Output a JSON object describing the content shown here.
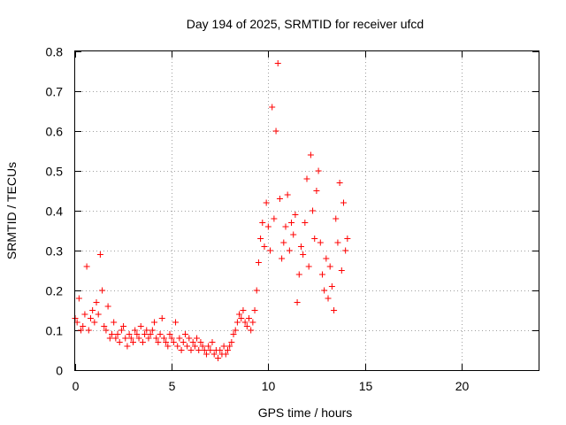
{
  "chart_data": {
    "type": "scatter",
    "title": "Day 194 of 2025, SRMTID for receiver ufcd",
    "xlabel": "GPS time / hours",
    "ylabel": "SRMTID / TECUs",
    "xlim": [
      0,
      24
    ],
    "ylim": [
      0,
      0.8
    ],
    "x_ticks": [
      0,
      5,
      10,
      15,
      20
    ],
    "y_ticks": [
      0,
      0.1,
      0.2,
      0.3,
      0.4,
      0.5,
      0.6,
      0.7,
      0.8
    ],
    "x_tick_labels": [
      "0",
      "5",
      "10",
      "15",
      "20"
    ],
    "y_tick_labels": [
      "0",
      "0.1",
      "0.2",
      "0.3",
      "0.4",
      "0.5",
      "0.6",
      "0.7",
      "0.8"
    ],
    "grid": true,
    "marker": "plus",
    "color": "#ff0000",
    "series": [
      {
        "name": "SRMTID",
        "x": [
          0.0,
          0.1,
          0.2,
          0.3,
          0.4,
          0.5,
          0.6,
          0.7,
          0.8,
          0.9,
          1.0,
          1.1,
          1.2,
          1.3,
          1.4,
          1.5,
          1.6,
          1.7,
          1.8,
          1.9,
          2.0,
          2.1,
          2.2,
          2.3,
          2.4,
          2.5,
          2.6,
          2.7,
          2.8,
          2.9,
          3.0,
          3.1,
          3.2,
          3.3,
          3.4,
          3.5,
          3.6,
          3.7,
          3.8,
          3.9,
          4.0,
          4.1,
          4.2,
          4.3,
          4.4,
          4.5,
          4.6,
          4.7,
          4.8,
          4.9,
          5.0,
          5.1,
          5.2,
          5.3,
          5.4,
          5.5,
          5.6,
          5.7,
          5.8,
          5.9,
          6.0,
          6.1,
          6.2,
          6.3,
          6.4,
          6.5,
          6.6,
          6.7,
          6.8,
          6.9,
          7.0,
          7.1,
          7.2,
          7.3,
          7.4,
          7.5,
          7.6,
          7.7,
          7.8,
          7.9,
          8.0,
          8.1,
          8.2,
          8.3,
          8.4,
          8.5,
          8.6,
          8.7,
          8.8,
          8.9,
          9.0,
          9.1,
          9.2,
          9.3,
          9.4,
          9.5,
          9.6,
          9.7,
          9.8,
          9.9,
          10.0,
          10.1,
          10.2,
          10.3,
          10.4,
          10.5,
          10.6,
          10.7,
          10.8,
          10.9,
          11.0,
          11.1,
          11.2,
          11.3,
          11.4,
          11.5,
          11.6,
          11.7,
          11.8,
          11.9,
          12.0,
          12.1,
          12.2,
          12.3,
          12.4,
          12.5,
          12.6,
          12.7,
          12.8,
          12.9,
          13.0,
          13.1,
          13.2,
          13.3,
          13.4,
          13.5,
          13.6,
          13.7,
          13.8,
          13.9,
          14.0,
          14.1
        ],
        "y": [
          0.13,
          0.12,
          0.18,
          0.1,
          0.11,
          0.14,
          0.26,
          0.1,
          0.13,
          0.15,
          0.12,
          0.17,
          0.14,
          0.29,
          0.2,
          0.11,
          0.1,
          0.16,
          0.08,
          0.09,
          0.12,
          0.08,
          0.09,
          0.07,
          0.1,
          0.11,
          0.08,
          0.06,
          0.09,
          0.08,
          0.07,
          0.1,
          0.09,
          0.08,
          0.11,
          0.07,
          0.09,
          0.1,
          0.08,
          0.09,
          0.1,
          0.12,
          0.08,
          0.07,
          0.09,
          0.13,
          0.08,
          0.07,
          0.06,
          0.09,
          0.08,
          0.07,
          0.12,
          0.06,
          0.08,
          0.05,
          0.07,
          0.09,
          0.06,
          0.08,
          0.05,
          0.07,
          0.06,
          0.08,
          0.05,
          0.07,
          0.06,
          0.05,
          0.04,
          0.06,
          0.05,
          0.07,
          0.04,
          0.05,
          0.03,
          0.05,
          0.04,
          0.06,
          0.04,
          0.05,
          0.06,
          0.07,
          0.09,
          0.1,
          0.12,
          0.14,
          0.13,
          0.15,
          0.12,
          0.11,
          0.13,
          0.1,
          0.12,
          0.15,
          0.2,
          0.27,
          0.33,
          0.37,
          0.31,
          0.42,
          0.36,
          0.3,
          0.66,
          0.38,
          0.6,
          0.77,
          0.43,
          0.28,
          0.32,
          0.36,
          0.44,
          0.3,
          0.37,
          0.34,
          0.39,
          0.17,
          0.24,
          0.31,
          0.29,
          0.37,
          0.48,
          0.26,
          0.54,
          0.4,
          0.33,
          0.45,
          0.5,
          0.32,
          0.24,
          0.2,
          0.28,
          0.18,
          0.26,
          0.21,
          0.15,
          0.38,
          0.32,
          0.47,
          0.25,
          0.42,
          0.3,
          0.33
        ]
      }
    ]
  }
}
